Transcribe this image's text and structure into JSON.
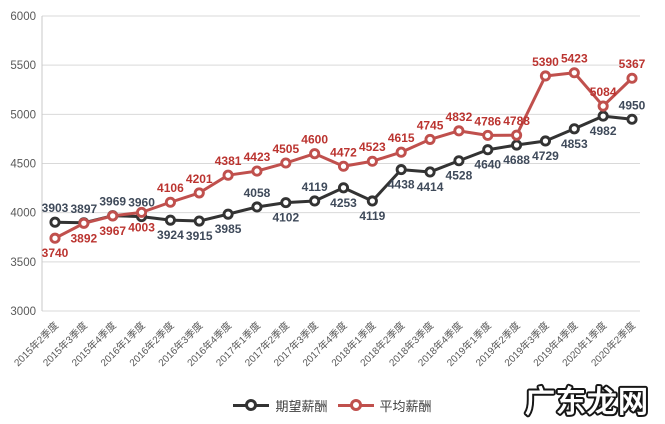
{
  "watermark": {
    "text": "广东龙网"
  },
  "legend": {
    "items": [
      {
        "label": "期望薪酬",
        "color": "#333333"
      },
      {
        "label": "平均薪酬",
        "color": "#C0504D"
      }
    ]
  },
  "y_axis": {
    "tick_labels": [
      "3000",
      "3500",
      "4000",
      "4500",
      "5000",
      "5500",
      "6000"
    ]
  },
  "chart_data": {
    "type": "line",
    "title": "",
    "xlabel": "",
    "ylabel": "",
    "ylim": [
      3000,
      6000
    ],
    "y_ticks": [
      3000,
      3500,
      4000,
      4500,
      5000,
      5500,
      6000
    ],
    "grid": true,
    "legend_position": "bottom",
    "categories": [
      "2015年2季度",
      "2015年3季度",
      "2015年4季度",
      "2016年1季度",
      "2016年2季度",
      "2016年3季度",
      "2016年4季度",
      "2017年1季度",
      "2017年2季度",
      "2017年3季度",
      "2017年4季度",
      "2018年1季度",
      "2018年2季度",
      "2018年3季度",
      "2018年4季度",
      "2019年1季度",
      "2019年2季度",
      "2019年3季度",
      "2019年4季度",
      "2020年1季度",
      "2020年2季度"
    ],
    "series": [
      {
        "name": "期望薪酬",
        "color": "#333333",
        "label_color": "#3F4A5A",
        "values": [
          3903,
          3897,
          3969,
          3960,
          3924,
          3915,
          3985,
          4058,
          4102,
          4119,
          4253,
          4119,
          4438,
          4414,
          4528,
          4640,
          4688,
          4729,
          4853,
          4982,
          4950
        ],
        "label_side": [
          "above",
          "above",
          "above",
          "above",
          "below",
          "below",
          "below",
          "above",
          "below",
          "above",
          "below",
          "below",
          "below",
          "below",
          "below",
          "below",
          "below",
          "below",
          "below",
          "below",
          "above"
        ]
      },
      {
        "name": "平均薪酬",
        "color": "#C0504D",
        "label_color": "#BB3430",
        "values": [
          3740,
          3892,
          3967,
          4003,
          4106,
          4201,
          4381,
          4423,
          4505,
          4600,
          4472,
          4523,
          4615,
          4745,
          4832,
          4786,
          4788,
          5390,
          5423,
          5084,
          5367
        ],
        "label_side": [
          "below",
          "below",
          "below",
          "below",
          "above",
          "above",
          "above",
          "above",
          "above",
          "above",
          "above",
          "above",
          "above",
          "above",
          "above",
          "above",
          "above",
          "above",
          "above",
          "above",
          "above"
        ]
      }
    ]
  }
}
